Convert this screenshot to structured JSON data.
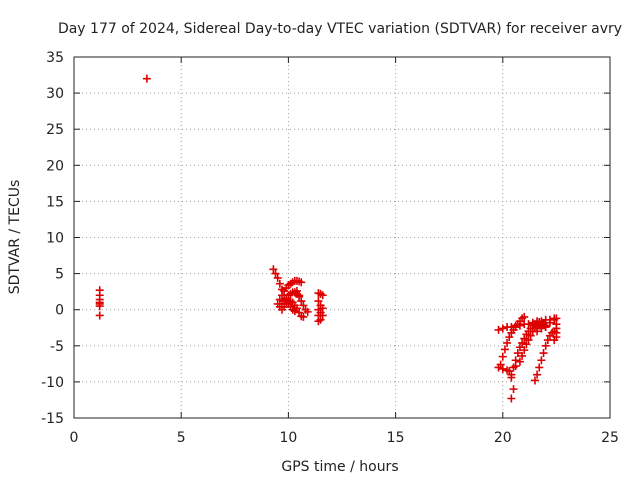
{
  "chart_data": {
    "type": "scatter",
    "title": "Day 177 of 2024, Sidereal Day-to-day VTEC variation (SDTVAR) for receiver avry",
    "xlabel": "GPS time / hours",
    "ylabel": "SDTVAR / TECUs",
    "xlim": [
      0,
      25
    ],
    "ylim": [
      -15,
      35
    ],
    "xticks": [
      0,
      5,
      10,
      15,
      20,
      25
    ],
    "yticks": [
      -15,
      -10,
      -5,
      0,
      5,
      10,
      15,
      20,
      25,
      30,
      35
    ],
    "grid": true,
    "marker": "+",
    "series": [
      {
        "name": "SDTVAR",
        "color": "#dd0000",
        "points": [
          [
            1.2,
            2.7
          ],
          [
            1.2,
            2.0
          ],
          [
            1.2,
            1.4
          ],
          [
            1.2,
            1.0
          ],
          [
            1.2,
            0.8
          ],
          [
            1.2,
            0.5
          ],
          [
            1.2,
            -0.8
          ],
          [
            3.4,
            32.0
          ],
          [
            9.3,
            5.6
          ],
          [
            9.4,
            5.0
          ],
          [
            9.5,
            4.4
          ],
          [
            9.6,
            3.6
          ],
          [
            9.7,
            2.8
          ],
          [
            9.8,
            2.0
          ],
          [
            9.9,
            1.4
          ],
          [
            10.0,
            0.8
          ],
          [
            10.1,
            0.4
          ],
          [
            10.2,
            0.0
          ],
          [
            10.3,
            -0.2
          ],
          [
            9.5,
            0.8
          ],
          [
            9.6,
            1.4
          ],
          [
            9.7,
            2.0
          ],
          [
            9.8,
            2.6
          ],
          [
            9.9,
            3.0
          ],
          [
            10.0,
            3.4
          ],
          [
            10.1,
            3.6
          ],
          [
            10.2,
            3.8
          ],
          [
            10.3,
            4.0
          ],
          [
            10.4,
            4.0
          ],
          [
            10.5,
            3.9
          ],
          [
            10.6,
            3.8
          ],
          [
            9.6,
            0.4
          ],
          [
            9.7,
            0.8
          ],
          [
            9.8,
            1.2
          ],
          [
            9.9,
            1.6
          ],
          [
            10.0,
            2.0
          ],
          [
            10.1,
            2.2
          ],
          [
            10.2,
            2.4
          ],
          [
            10.3,
            2.4
          ],
          [
            10.4,
            2.2
          ],
          [
            10.5,
            2.0
          ],
          [
            9.7,
            0.0
          ],
          [
            9.8,
            0.4
          ],
          [
            9.9,
            0.8
          ],
          [
            10.0,
            1.0
          ],
          [
            10.1,
            1.2
          ],
          [
            10.2,
            1.0
          ],
          [
            10.3,
            0.6
          ],
          [
            10.4,
            0.2
          ],
          [
            10.5,
            -0.4
          ],
          [
            10.6,
            -0.9
          ],
          [
            10.7,
            -1.0
          ],
          [
            10.4,
            2.6
          ],
          [
            10.5,
            1.8
          ],
          [
            10.6,
            1.2
          ],
          [
            10.7,
            0.6
          ],
          [
            10.8,
            0.0
          ],
          [
            10.9,
            -0.3
          ],
          [
            11.4,
            2.3
          ],
          [
            11.5,
            2.2
          ],
          [
            11.6,
            2.0
          ],
          [
            11.4,
            1.2
          ],
          [
            11.5,
            0.6
          ],
          [
            11.6,
            0.2
          ],
          [
            11.4,
            0.0
          ],
          [
            11.5,
            -0.4
          ],
          [
            11.6,
            -0.8
          ],
          [
            11.4,
            -0.8
          ],
          [
            11.5,
            -1.4
          ],
          [
            11.4,
            -1.6
          ],
          [
            19.8,
            -2.8
          ],
          [
            20.0,
            -2.6
          ],
          [
            20.2,
            -2.4
          ],
          [
            20.4,
            -2.4
          ],
          [
            20.6,
            -2.2
          ],
          [
            20.8,
            -2.2
          ],
          [
            21.0,
            -2.0
          ],
          [
            21.2,
            -2.0
          ],
          [
            21.4,
            -1.8
          ],
          [
            21.6,
            -1.6
          ],
          [
            21.8,
            -1.6
          ],
          [
            22.0,
            -1.4
          ],
          [
            22.2,
            -1.4
          ],
          [
            22.4,
            -1.2
          ],
          [
            19.9,
            -7.6
          ],
          [
            20.0,
            -6.5
          ],
          [
            20.1,
            -5.5
          ],
          [
            20.2,
            -4.6
          ],
          [
            20.3,
            -3.8
          ],
          [
            20.4,
            -3.2
          ],
          [
            20.5,
            -2.8
          ],
          [
            20.6,
            -2.4
          ],
          [
            20.7,
            -2.0
          ],
          [
            20.8,
            -1.6
          ],
          [
            20.9,
            -1.2
          ],
          [
            21.0,
            -1.0
          ],
          [
            19.8,
            -8.0
          ],
          [
            20.0,
            -8.2
          ],
          [
            20.2,
            -8.4
          ],
          [
            20.3,
            -8.5
          ],
          [
            20.4,
            -9.4
          ],
          [
            20.5,
            -11.0
          ],
          [
            20.4,
            -12.3
          ],
          [
            20.4,
            -9.0
          ],
          [
            20.5,
            -8.0
          ],
          [
            20.6,
            -7.0
          ],
          [
            20.7,
            -6.0
          ],
          [
            20.8,
            -5.2
          ],
          [
            20.9,
            -4.6
          ],
          [
            21.0,
            -4.0
          ],
          [
            21.1,
            -3.4
          ],
          [
            21.2,
            -3.0
          ],
          [
            21.3,
            -2.6
          ],
          [
            21.4,
            -2.2
          ],
          [
            21.5,
            -2.0
          ],
          [
            21.6,
            -1.8
          ],
          [
            21.7,
            -1.7
          ],
          [
            21.8,
            -1.8
          ],
          [
            21.9,
            -2.0
          ],
          [
            22.0,
            -2.4
          ],
          [
            20.6,
            -7.8
          ],
          [
            20.8,
            -7.2
          ],
          [
            20.9,
            -6.4
          ],
          [
            21.0,
            -5.6
          ],
          [
            21.1,
            -4.8
          ],
          [
            21.2,
            -4.2
          ],
          [
            21.3,
            -3.6
          ],
          [
            21.4,
            -3.0
          ],
          [
            21.5,
            -2.6
          ],
          [
            21.6,
            -2.4
          ],
          [
            21.7,
            -2.2
          ],
          [
            21.8,
            -2.2
          ],
          [
            22.0,
            -2.4
          ],
          [
            21.5,
            -9.8
          ],
          [
            21.6,
            -9.0
          ],
          [
            21.7,
            -8.0
          ],
          [
            21.8,
            -7.0
          ],
          [
            21.9,
            -6.0
          ],
          [
            22.0,
            -5.0
          ],
          [
            22.1,
            -4.2
          ],
          [
            22.2,
            -3.6
          ],
          [
            22.3,
            -3.2
          ],
          [
            22.4,
            -3.0
          ],
          [
            22.5,
            -3.2
          ],
          [
            21.6,
            -3.0
          ],
          [
            21.8,
            -2.6
          ],
          [
            22.0,
            -2.2
          ],
          [
            22.2,
            -1.8
          ],
          [
            22.4,
            -1.4
          ],
          [
            22.5,
            -1.2
          ],
          [
            22.4,
            -4.2
          ],
          [
            22.5,
            -3.8
          ],
          [
            22.5,
            -2.6
          ],
          [
            22.5,
            -2.0
          ]
        ]
      }
    ]
  }
}
